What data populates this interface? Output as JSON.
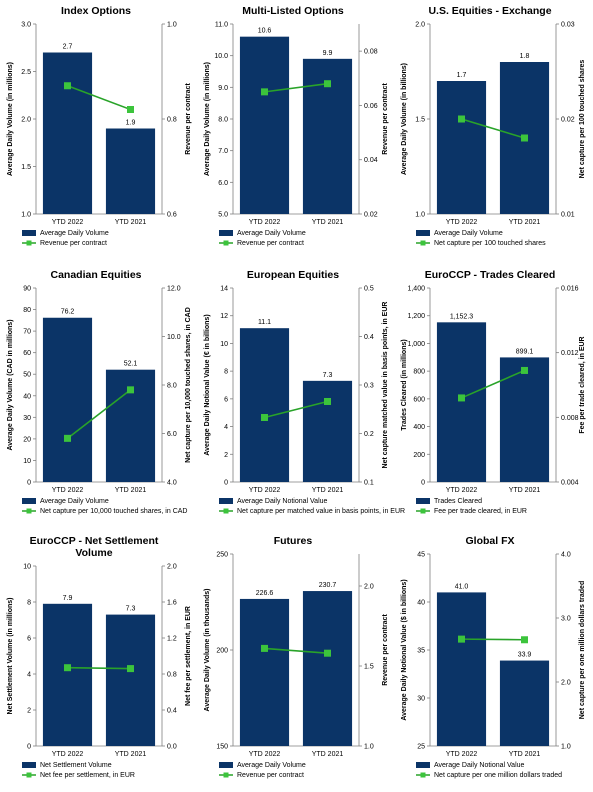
{
  "colors": {
    "bar": "#0b3467",
    "line": "#29a329",
    "marker": "#3cc43c",
    "axis": "#7f7f7f"
  },
  "chart_data": [
    {
      "type": "bar",
      "title": "Index Options",
      "categories": [
        "YTD 2022",
        "YTD 2021"
      ],
      "ylabel": "Average Daily Volume (in millions)",
      "y2label": "Revenue per contract",
      "ylim": [
        1.0,
        3.0
      ],
      "yticks": [
        "1.0",
        "1.5",
        "2.0",
        "2.5",
        "3.0"
      ],
      "y2lim": [
        0.6,
        1.0
      ],
      "y2ticks": [
        "0.6",
        "0.8",
        "1.0"
      ],
      "series": [
        {
          "name": "Average Daily Volume",
          "type": "bar",
          "values": [
            2.7,
            1.9
          ],
          "labels": [
            "2.7",
            "1.9"
          ]
        },
        {
          "name": "Revenue per contract",
          "type": "line",
          "axis": "right",
          "values": [
            0.87,
            0.82
          ]
        }
      ]
    },
    {
      "type": "bar",
      "title": "Multi-Listed Options",
      "categories": [
        "YTD 2022",
        "YTD 2021"
      ],
      "ylabel": "Average Daily Volume (in millions)",
      "y2label": "Revenue per contract",
      "ylim": [
        5.0,
        11.0
      ],
      "yticks": [
        "5.0",
        "6.0",
        "7.0",
        "8.0",
        "9.0",
        "10.0",
        "11.0"
      ],
      "y2lim": [
        0.02,
        0.09
      ],
      "y2ticks": [
        "0.02",
        "0.04",
        "0.06",
        "0.08"
      ],
      "series": [
        {
          "name": "Average Daily Volume",
          "type": "bar",
          "values": [
            10.6,
            9.9
          ],
          "labels": [
            "10.6",
            "9.9"
          ]
        },
        {
          "name": "Revenue per contract",
          "type": "line",
          "axis": "right",
          "values": [
            0.065,
            0.068
          ]
        }
      ]
    },
    {
      "type": "bar",
      "title": "U.S. Equities - Exchange",
      "categories": [
        "YTD 2022",
        "YTD 2021"
      ],
      "ylabel": "Average Daily Volume (in billions)",
      "y2label": "Net capture per 100 touched shares",
      "ylim": [
        1.0,
        2.0
      ],
      "yticks": [
        "1.0",
        "1.5",
        "2.0"
      ],
      "y2lim": [
        0.01,
        0.03
      ],
      "y2ticks": [
        "0.01",
        "0.02",
        "0.03"
      ],
      "series": [
        {
          "name": "Average Daily Volume",
          "type": "bar",
          "values": [
            1.7,
            1.8
          ],
          "labels": [
            "1.7",
            "1.8"
          ]
        },
        {
          "name": "Net capture per 100 touched shares",
          "type": "line",
          "axis": "right",
          "values": [
            0.02,
            0.018
          ]
        }
      ]
    },
    {
      "type": "bar",
      "title": "Canadian Equities",
      "categories": [
        "YTD 2022",
        "YTD 2021"
      ],
      "ylabel": "Average Daily Volume (CAD in millions)",
      "y2label": "Net capture per 10,000 touched shares, in CAD",
      "ylim": [
        0,
        90
      ],
      "yticks": [
        "0",
        "10",
        "20",
        "30",
        "40",
        "50",
        "60",
        "70",
        "80",
        "90"
      ],
      "y2lim": [
        4.0,
        12.0
      ],
      "y2ticks": [
        "4.0",
        "6.0",
        "8.0",
        "10.0",
        "12.0"
      ],
      "series": [
        {
          "name": "Average Daily Volume",
          "type": "bar",
          "values": [
            76.2,
            52.1
          ],
          "labels": [
            "76.2",
            "52.1"
          ]
        },
        {
          "name": "Net capture per 10,000 touched shares, in CAD",
          "type": "line",
          "axis": "right",
          "values": [
            5.8,
            7.8
          ]
        }
      ]
    },
    {
      "type": "bar",
      "title": "European Equities",
      "categories": [
        "YTD 2022",
        "YTD 2021"
      ],
      "ylabel": "Average Daily Notional Value (€ in billions)",
      "y2label": "Net capture matched value in basis points, in EUR",
      "ylim": [
        0,
        14
      ],
      "yticks": [
        "0",
        "2",
        "4",
        "6",
        "8",
        "10",
        "12",
        "14"
      ],
      "y2lim": [
        0.1,
        0.5
      ],
      "y2ticks": [
        "0.1",
        "0.2",
        "0.3",
        "0.4",
        "0.5"
      ],
      "series": [
        {
          "name": "Average Daily Notional Value",
          "type": "bar",
          "values": [
            11.1,
            7.3
          ],
          "labels": [
            "11.1",
            "7.3"
          ]
        },
        {
          "name": "Net capture per matched value in basis points, in EUR",
          "type": "line",
          "axis": "right",
          "values": [
            0.233,
            0.266
          ]
        }
      ]
    },
    {
      "type": "bar",
      "title": "EuroCCP - Trades Cleared",
      "categories": [
        "YTD 2022",
        "YTD 2021"
      ],
      "ylabel": "Trades Cleared (in millions)",
      "y2label": "Fee per trade cleared, in EUR",
      "ylim": [
        0,
        1400
      ],
      "yticks": [
        "0",
        "200",
        "400",
        "600",
        "800",
        "1,000",
        "1,200",
        "1,400"
      ],
      "y2lim": [
        0.004,
        0.016
      ],
      "y2ticks": [
        "0.004",
        "0.008",
        "0.012",
        "0.016"
      ],
      "series": [
        {
          "name": "Trades Cleared",
          "type": "bar",
          "values": [
            1152.3,
            899.1
          ],
          "labels": [
            "1,152.3",
            "899.1"
          ]
        },
        {
          "name": "Fee per trade cleared, in EUR",
          "type": "line",
          "axis": "right",
          "values": [
            0.0092,
            0.0109
          ]
        }
      ]
    },
    {
      "type": "bar",
      "title": "EuroCCP - Net Settlement Volume",
      "title_lines": [
        "EuroCCP - Net Settlement",
        "Volume"
      ],
      "categories": [
        "YTD 2022",
        "YTD 2021"
      ],
      "ylabel": "Net Settlement Volume (in millions)",
      "y2label": "Net fee per settlement, in EUR",
      "ylim": [
        0,
        10
      ],
      "yticks": [
        "0",
        "2",
        "4",
        "6",
        "8",
        "10"
      ],
      "y2lim": [
        0.0,
        2.0
      ],
      "y2ticks": [
        "0.0",
        "0.4",
        "0.8",
        "1.2",
        "1.6",
        "2.0"
      ],
      "series": [
        {
          "name": "Net Settlement Volume",
          "type": "bar",
          "values": [
            7.9,
            7.3
          ],
          "labels": [
            "7.9",
            "7.3"
          ]
        },
        {
          "name": "Net fee per settlement, in EUR",
          "type": "line",
          "axis": "right",
          "values": [
            0.87,
            0.86
          ]
        }
      ]
    },
    {
      "type": "bar",
      "title": "Futures",
      "categories": [
        "YTD 2022",
        "YTD 2021"
      ],
      "ylabel": "Average Daily Volume (in thousands)",
      "y2label": "Revenue per contract",
      "ylim": [
        150,
        250
      ],
      "yticks": [
        "150",
        "200",
        "250"
      ],
      "y2lim": [
        1.0,
        2.2
      ],
      "y2ticks": [
        "1.0",
        "1.5",
        "2.0"
      ],
      "series": [
        {
          "name": "Average Daily Volume",
          "type": "bar",
          "values": [
            226.6,
            230.7
          ],
          "labels": [
            "226.6",
            "230.7"
          ]
        },
        {
          "name": "Revenue per contract",
          "type": "line",
          "axis": "right",
          "values": [
            1.61,
            1.58
          ]
        }
      ]
    },
    {
      "type": "bar",
      "title": "Global FX",
      "categories": [
        "YTD 2022",
        "YTD 2021"
      ],
      "ylabel": "Average Daily Notional Value ($ in billions)",
      "y2label": "Net capture per one million dollars traded",
      "ylim": [
        25,
        45
      ],
      "yticks": [
        "25",
        "30",
        "35",
        "40",
        "45"
      ],
      "y2lim": [
        1.0,
        4.0
      ],
      "y2ticks": [
        "1.0",
        "2.0",
        "3.0",
        "4.0"
      ],
      "series": [
        {
          "name": "Average Daily Notional Value",
          "type": "bar",
          "values": [
            41.0,
            33.9
          ],
          "labels": [
            "41.0",
            "33.9"
          ]
        },
        {
          "name": "Net capture per one million dollars traded",
          "type": "line",
          "axis": "right",
          "values": [
            2.67,
            2.66
          ]
        }
      ]
    }
  ]
}
